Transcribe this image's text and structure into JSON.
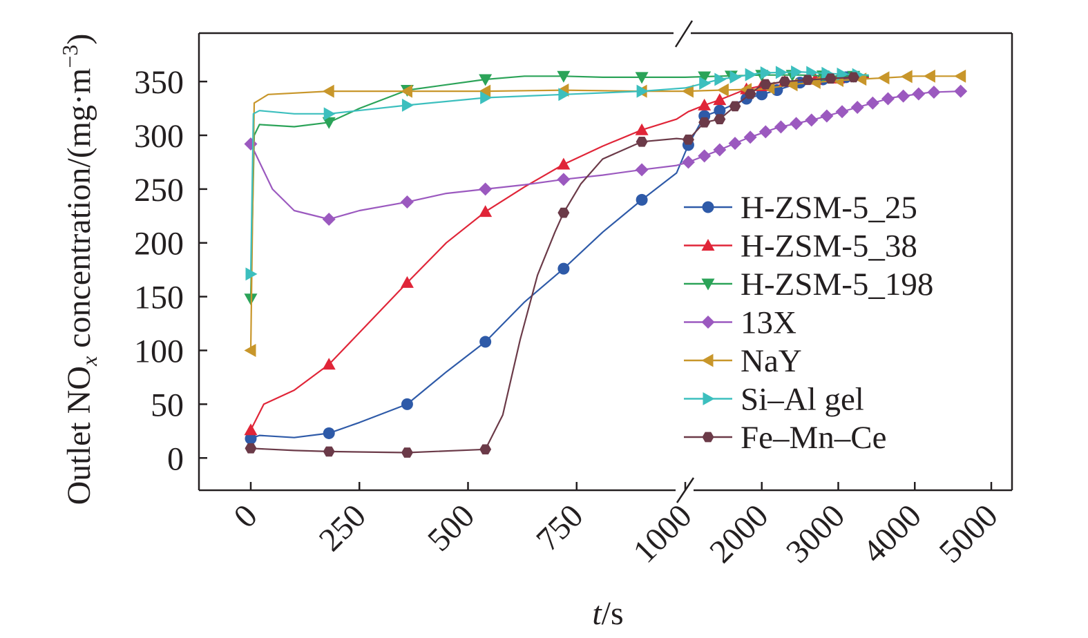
{
  "chart_data": {
    "type": "line",
    "title": "",
    "xlabel": {
      "italic": "t",
      "rest": "/s"
    },
    "ylabel": {
      "prefix": "Outlet NO",
      "sub": "x",
      "middle": " concentration/(mg·m",
      "sup": "−3",
      "suffix": ")"
    },
    "x_axis": "broken scale: linear 0–1000, then compressed 1000–5000",
    "xticks": [
      "0",
      "250",
      "500",
      "750",
      "1000",
      "2000",
      "3000",
      "4000",
      "5000"
    ],
    "xtick_values": [
      0,
      250,
      500,
      750,
      1000,
      2000,
      3000,
      4000,
      5000
    ],
    "yticks": [
      "0",
      "50",
      "100",
      "150",
      "200",
      "250",
      "300",
      "350"
    ],
    "ylim": [
      -30,
      395
    ],
    "grid": false,
    "legend_position": "right-center",
    "series": [
      {
        "name": "H-ZSM-5_25",
        "color": "#2e5aa8",
        "marker": "circle",
        "points": [
          [
            0,
            18
          ],
          [
            20,
            21
          ],
          [
            100,
            19
          ],
          [
            180,
            23
          ],
          [
            250,
            33
          ],
          [
            360,
            50
          ],
          [
            450,
            80
          ],
          [
            540,
            108
          ],
          [
            630,
            145
          ],
          [
            720,
            176
          ],
          [
            810,
            210
          ],
          [
            900,
            240
          ],
          [
            980,
            265
          ],
          [
            1040,
            291
          ],
          [
            1250,
            318
          ],
          [
            1450,
            323
          ],
          [
            1800,
            334
          ],
          [
            2000,
            338
          ],
          [
            2200,
            342
          ],
          [
            2500,
            349
          ],
          [
            2800,
            352
          ],
          [
            3100,
            354
          ],
          [
            3400,
            354
          ]
        ],
        "marker_x": [
          0,
          180,
          360,
          540,
          720,
          900,
          1040,
          1250,
          1450,
          1800,
          2000,
          2200,
          2500,
          2800,
          3100
        ]
      },
      {
        "name": "H-ZSM-5_38",
        "color": "#e02538",
        "marker": "triangle-up",
        "points": [
          [
            0,
            26
          ],
          [
            30,
            50
          ],
          [
            100,
            63
          ],
          [
            180,
            87
          ],
          [
            270,
            125
          ],
          [
            360,
            163
          ],
          [
            450,
            200
          ],
          [
            540,
            229
          ],
          [
            630,
            252
          ],
          [
            720,
            273
          ],
          [
            810,
            290
          ],
          [
            900,
            305
          ],
          [
            980,
            315
          ],
          [
            1040,
            322
          ],
          [
            1250,
            328
          ],
          [
            1450,
            333
          ],
          [
            1800,
            343
          ],
          [
            2000,
            346
          ],
          [
            2300,
            350
          ],
          [
            2700,
            352
          ],
          [
            3000,
            353
          ],
          [
            3400,
            354
          ]
        ],
        "marker_x": [
          0,
          180,
          360,
          540,
          720,
          900,
          1250,
          1450,
          1800,
          2000,
          2300,
          2700,
          3000
        ]
      },
      {
        "name": "H-ZSM-5_198",
        "color": "#2ba358",
        "marker": "triangle-down",
        "points": [
          [
            0,
            148
          ],
          [
            8,
            300
          ],
          [
            20,
            310
          ],
          [
            100,
            308
          ],
          [
            180,
            312
          ],
          [
            250,
            325
          ],
          [
            360,
            342
          ],
          [
            540,
            352
          ],
          [
            630,
            355
          ],
          [
            720,
            355
          ],
          [
            810,
            354
          ],
          [
            900,
            354
          ],
          [
            1000,
            354
          ],
          [
            1450,
            355
          ],
          [
            2000,
            356
          ],
          [
            2500,
            356
          ],
          [
            3000,
            355
          ],
          [
            3400,
            355
          ]
        ],
        "marker_x": [
          0,
          180,
          360,
          540,
          720,
          900,
          1250,
          1600,
          2000,
          2400,
          2800,
          3200
        ]
      },
      {
        "name": "13X",
        "color": "#9b59bf",
        "marker": "diamond",
        "points": [
          [
            0,
            292
          ],
          [
            50,
            250
          ],
          [
            100,
            230
          ],
          [
            180,
            222
          ],
          [
            250,
            230
          ],
          [
            360,
            238
          ],
          [
            450,
            246
          ],
          [
            540,
            250
          ],
          [
            630,
            254
          ],
          [
            720,
            259
          ],
          [
            810,
            263
          ],
          [
            900,
            268
          ],
          [
            980,
            272
          ],
          [
            1040,
            275
          ],
          [
            1400,
            285
          ],
          [
            1800,
            297
          ],
          [
            2200,
            307
          ],
          [
            2700,
            315
          ],
          [
            3200,
            325
          ],
          [
            3700,
            335
          ],
          [
            4200,
            340
          ],
          [
            4600,
            341
          ]
        ],
        "marker_x": [
          0,
          180,
          360,
          540,
          720,
          900,
          1040,
          1250,
          1450,
          1650,
          1850,
          2050,
          2250,
          2450,
          2650,
          2850,
          3050,
          3250,
          3450,
          3650,
          3850,
          4050,
          4250,
          4600
        ]
      },
      {
        "name": "NaY",
        "color": "#c8962a",
        "marker": "triangle-left",
        "points": [
          [
            0,
            100
          ],
          [
            4,
            220
          ],
          [
            8,
            330
          ],
          [
            40,
            338
          ],
          [
            180,
            341
          ],
          [
            360,
            341
          ],
          [
            540,
            341
          ],
          [
            720,
            342
          ],
          [
            900,
            341
          ],
          [
            1000,
            341
          ],
          [
            1450,
            342
          ],
          [
            2000,
            343
          ],
          [
            2500,
            348
          ],
          [
            3000,
            351
          ],
          [
            3500,
            353
          ],
          [
            4000,
            355
          ],
          [
            4600,
            355
          ]
        ],
        "marker_x": [
          0,
          180,
          360,
          540,
          720,
          900,
          1040,
          1500,
          1800,
          2100,
          2400,
          2700,
          3000,
          3300,
          3600,
          3900,
          4200,
          4600
        ]
      },
      {
        "name": "Si–Al gel",
        "color": "#3cbfbe",
        "marker": "triangle-right",
        "points": [
          [
            0,
            171
          ],
          [
            6,
            320
          ],
          [
            20,
            323
          ],
          [
            100,
            320
          ],
          [
            180,
            320
          ],
          [
            360,
            328
          ],
          [
            540,
            335
          ],
          [
            720,
            338
          ],
          [
            900,
            341
          ],
          [
            1000,
            344
          ],
          [
            1450,
            352
          ],
          [
            2000,
            358
          ],
          [
            2500,
            359
          ],
          [
            3000,
            357
          ],
          [
            3400,
            356
          ]
        ],
        "marker_x": [
          0,
          180,
          360,
          540,
          720,
          900,
          1250,
          1450,
          1650,
          1850,
          2050,
          2250,
          2450,
          2650,
          2850,
          3050,
          3250
        ]
      },
      {
        "name": "Fe–Mn–Ce",
        "color": "#6b3a48",
        "marker": "hexagon",
        "points": [
          [
            0,
            9
          ],
          [
            100,
            7
          ],
          [
            180,
            6
          ],
          [
            360,
            5
          ],
          [
            540,
            8
          ],
          [
            580,
            40
          ],
          [
            620,
            110
          ],
          [
            660,
            170
          ],
          [
            700,
            210
          ],
          [
            720,
            228
          ],
          [
            760,
            255
          ],
          [
            810,
            278
          ],
          [
            900,
            294
          ],
          [
            980,
            297
          ],
          [
            1040,
            296
          ],
          [
            1250,
            312
          ],
          [
            1450,
            315
          ],
          [
            1700,
            330
          ],
          [
            2000,
            347
          ],
          [
            2300,
            350
          ],
          [
            2700,
            352
          ],
          [
            3200,
            354
          ]
        ],
        "marker_x": [
          0,
          180,
          360,
          540,
          720,
          900,
          1040,
          1250,
          1450,
          1650,
          1850,
          2050,
          2300,
          2600,
          2900,
          3200
        ]
      }
    ]
  }
}
